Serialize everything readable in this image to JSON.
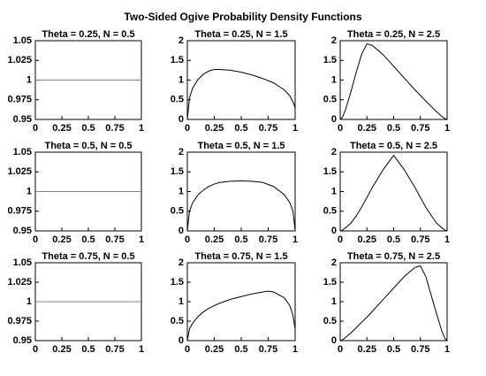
{
  "title": "Two-Sided Ogive Probability Density Functions",
  "chart_data": [
    {
      "type": "line",
      "title": "Theta = 0.25, N = 0.5",
      "x": [
        0,
        1
      ],
      "values": [
        1,
        1
      ],
      "color": "#808080",
      "xlim": [
        0,
        1
      ],
      "xticks": [
        0,
        0.25,
        0.5,
        0.75,
        1
      ],
      "ylim": [
        0.95,
        1.05
      ],
      "yticks": [
        0.95,
        0.975,
        1,
        1.025,
        1.05
      ]
    },
    {
      "type": "line",
      "title": "Theta = 0.25, N = 1.5",
      "x": [
        0,
        0.02,
        0.05,
        0.1,
        0.15,
        0.2,
        0.25,
        0.3,
        0.4,
        0.5,
        0.6,
        0.7,
        0.8,
        0.9,
        0.95,
        0.98,
        1
      ],
      "values": [
        0,
        0.55,
        0.8,
        1.02,
        1.15,
        1.23,
        1.27,
        1.27,
        1.25,
        1.2,
        1.13,
        1.04,
        0.93,
        0.75,
        0.6,
        0.45,
        0.3
      ],
      "color": "#000000",
      "xlim": [
        0,
        1
      ],
      "xticks": [
        0,
        0.25,
        0.5,
        0.75,
        1
      ],
      "ylim": [
        0,
        2
      ],
      "yticks": [
        0,
        0.5,
        1,
        1.5,
        2
      ]
    },
    {
      "type": "line",
      "title": "Theta = 0.25, N = 2.5",
      "x": [
        0,
        0.02,
        0.05,
        0.1,
        0.15,
        0.2,
        0.25,
        0.3,
        0.4,
        0.5,
        0.6,
        0.7,
        0.8,
        0.9,
        0.95,
        0.98,
        1
      ],
      "values": [
        0,
        0.05,
        0.25,
        0.7,
        1.2,
        1.65,
        1.92,
        1.88,
        1.65,
        1.35,
        1.05,
        0.75,
        0.47,
        0.2,
        0.08,
        0.02,
        0
      ],
      "color": "#000000",
      "xlim": [
        0,
        1
      ],
      "xticks": [
        0,
        0.25,
        0.5,
        0.75,
        1
      ],
      "ylim": [
        0,
        2
      ],
      "yticks": [
        0,
        0.5,
        1,
        1.5,
        2
      ]
    },
    {
      "type": "line",
      "title": "Theta = 0.5, N = 0.5",
      "x": [
        0,
        1
      ],
      "values": [
        1,
        1
      ],
      "color": "#808080",
      "xlim": [
        0,
        1
      ],
      "xticks": [
        0,
        0.25,
        0.5,
        0.75,
        1
      ],
      "ylim": [
        0.95,
        1.05
      ],
      "yticks": [
        0.95,
        0.975,
        1,
        1.025,
        1.05
      ]
    },
    {
      "type": "line",
      "title": "Theta = 0.5, N = 1.5",
      "x": [
        0,
        0.02,
        0.05,
        0.1,
        0.15,
        0.2,
        0.25,
        0.3,
        0.4,
        0.5,
        0.6,
        0.7,
        0.8,
        0.9,
        0.95,
        0.98,
        1
      ],
      "values": [
        0,
        0.5,
        0.72,
        0.92,
        1.04,
        1.13,
        1.19,
        1.23,
        1.26,
        1.27,
        1.26,
        1.23,
        1.13,
        0.92,
        0.72,
        0.5,
        0
      ],
      "color": "#000000",
      "xlim": [
        0,
        1
      ],
      "xticks": [
        0,
        0.25,
        0.5,
        0.75,
        1
      ],
      "ylim": [
        0,
        2
      ],
      "yticks": [
        0,
        0.5,
        1,
        1.5,
        2
      ]
    },
    {
      "type": "line",
      "title": "Theta = 0.5, N = 2.5",
      "x": [
        0,
        0.02,
        0.05,
        0.1,
        0.15,
        0.2,
        0.25,
        0.3,
        0.4,
        0.5,
        0.6,
        0.7,
        0.8,
        0.9,
        0.95,
        0.98,
        1
      ],
      "values": [
        0,
        0.02,
        0.08,
        0.2,
        0.38,
        0.6,
        0.85,
        1.1,
        1.55,
        1.92,
        1.55,
        1.1,
        0.6,
        0.2,
        0.08,
        0.02,
        0
      ],
      "color": "#000000",
      "xlim": [
        0,
        1
      ],
      "xticks": [
        0,
        0.25,
        0.5,
        0.75,
        1
      ],
      "ylim": [
        0,
        2
      ],
      "yticks": [
        0,
        0.5,
        1,
        1.5,
        2
      ]
    },
    {
      "type": "line",
      "title": "Theta = 0.75, N = 0.5",
      "x": [
        0,
        1
      ],
      "values": [
        1,
        1
      ],
      "color": "#808080",
      "xlim": [
        0,
        1
      ],
      "xticks": [
        0,
        0.25,
        0.5,
        0.75,
        1
      ],
      "ylim": [
        0.95,
        1.05
      ],
      "yticks": [
        0.95,
        0.975,
        1,
        1.025,
        1.05
      ]
    },
    {
      "type": "line",
      "title": "Theta = 0.75, N = 1.5",
      "x": [
        0,
        0.02,
        0.05,
        0.1,
        0.15,
        0.2,
        0.25,
        0.3,
        0.4,
        0.5,
        0.6,
        0.7,
        0.75,
        0.8,
        0.9,
        0.95,
        0.98,
        1
      ],
      "values": [
        0,
        0.3,
        0.45,
        0.62,
        0.74,
        0.83,
        0.9,
        0.96,
        1.06,
        1.13,
        1.2,
        1.25,
        1.27,
        1.25,
        1.1,
        0.9,
        0.65,
        0.3
      ],
      "color": "#000000",
      "xlim": [
        0,
        1
      ],
      "xticks": [
        0,
        0.25,
        0.5,
        0.75,
        1
      ],
      "ylim": [
        0,
        2
      ],
      "yticks": [
        0,
        0.5,
        1,
        1.5,
        2
      ]
    },
    {
      "type": "line",
      "title": "Theta = 0.75, N = 2.5",
      "x": [
        0,
        0.02,
        0.05,
        0.1,
        0.15,
        0.2,
        0.25,
        0.3,
        0.4,
        0.5,
        0.6,
        0.7,
        0.75,
        0.8,
        0.9,
        0.95,
        0.98,
        1
      ],
      "values": [
        0,
        0.02,
        0.08,
        0.2,
        0.33,
        0.47,
        0.6,
        0.75,
        1.05,
        1.35,
        1.65,
        1.88,
        1.92,
        1.65,
        0.7,
        0.25,
        0.05,
        0
      ],
      "color": "#000000",
      "xlim": [
        0,
        1
      ],
      "xticks": [
        0,
        0.25,
        0.5,
        0.75,
        1
      ],
      "ylim": [
        0,
        2
      ],
      "yticks": [
        0,
        0.5,
        1,
        1.5,
        2
      ]
    }
  ]
}
